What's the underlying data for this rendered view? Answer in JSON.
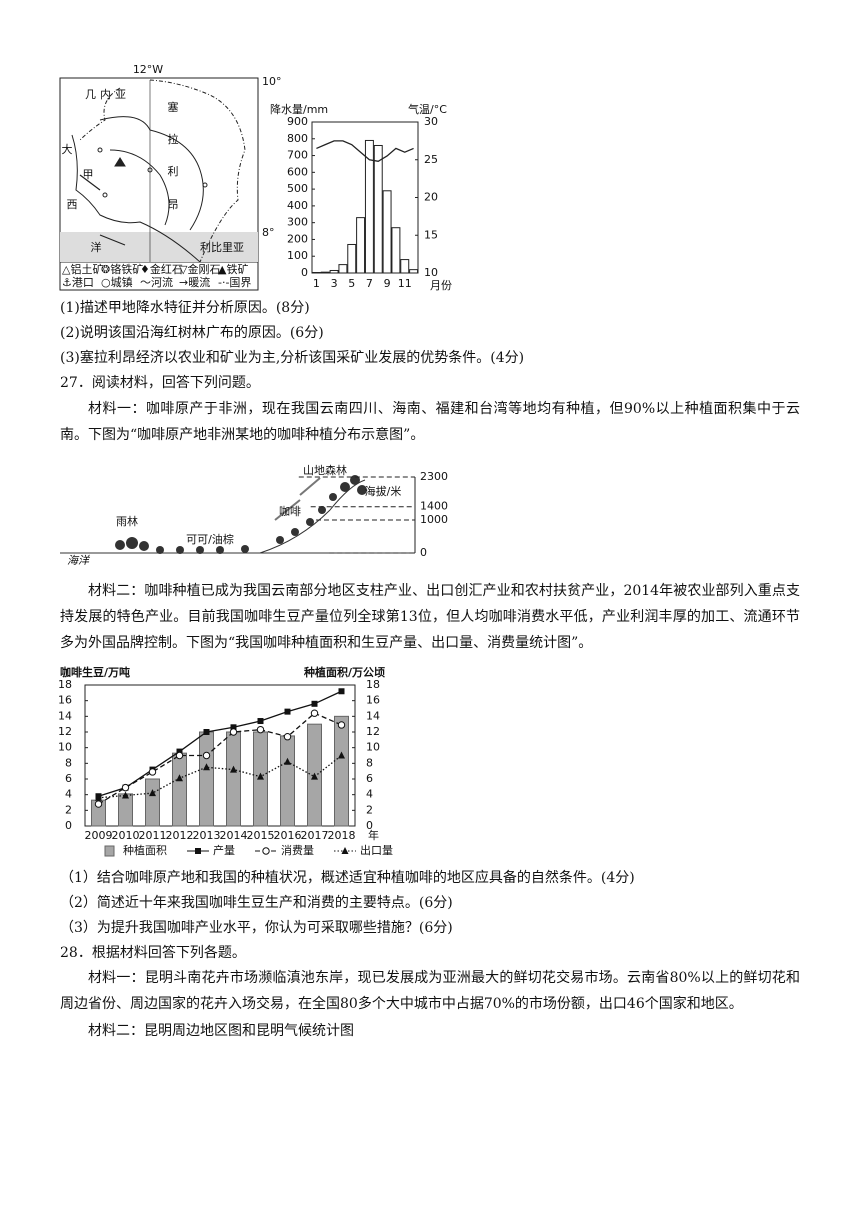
{
  "map": {
    "longitude": "12°W",
    "lat_north": "10°",
    "lat_south": "8°",
    "guinea": "几内亚",
    "country": [
      "塞",
      "拉",
      "利",
      "昂"
    ],
    "ocean": [
      "大",
      "西",
      "洋"
    ],
    "jia": "甲",
    "liberia": "利比里亚",
    "legend": [
      "△铝土矿",
      "❂铬铁矿",
      "♦金红石",
      "▽金刚石",
      "▲铁矿",
      "⚓港口",
      "○城镇",
      "～河流",
      "→暖流",
      "-·-国界"
    ]
  },
  "climate_chart": {
    "type": "bar-line",
    "ylabel": "降水量/mm",
    "y2label": "气温/°C",
    "xlabel": "月份",
    "categories": [
      1,
      null,
      3,
      null,
      5,
      null,
      7,
      null,
      9,
      null,
      11,
      null
    ],
    "series": [
      {
        "name": "降水量",
        "type": "bar",
        "values": [
          3,
          5,
          15,
          50,
          170,
          330,
          790,
          760,
          490,
          270,
          80,
          20
        ]
      },
      {
        "name": "气温",
        "type": "line",
        "axis": "y2",
        "values": [
          26.5,
          27,
          27.5,
          27.5,
          27,
          26,
          25,
          24.8,
          25.5,
          26.5,
          26,
          26.5
        ]
      }
    ],
    "ylim": [
      0,
      900
    ],
    "yticks": [
      0,
      100,
      200,
      300,
      400,
      500,
      600,
      700,
      800,
      900
    ],
    "y2lim": [
      10,
      30
    ],
    "y2ticks": [
      10,
      15,
      20,
      25,
      30
    ]
  },
  "q26_questions": [
    "(1)描述甲地降水特征并分析原因。(8分)",
    "(2)说明该国沿海红树林广布的原因。(6分)",
    "(3)塞拉利昂经济以农业和矿业为主,分析该国采矿业发展的优势条件。(4分)"
  ],
  "q27": {
    "title": "27．阅读材料，回答下列问题。",
    "material1": "材料一：咖啡原产于非洲，现在我国云南四川、海南、福建和台湾等地均有种植，但90%以上种植面积集中于云南。下图为“咖啡原产地非洲某地的咖啡种植分布示意图”。",
    "material2": "材料二：咖啡种植已成为我国云南部分地区支柱产业、出口创汇产业和农村扶贫产业，2014年被农业部列入重点支持发展的特色产业。目前我国咖啡生豆产量位列全球第13位，但人均咖啡消费水平低，产业利润丰厚的加工、流通环节多为外国品牌控制。下图为“我国咖啡种植面积和生豆产量、出口量、消费量统计图”。",
    "questions": [
      "（1）结合咖啡原产地和我国的种植状况，概述适宜种植咖啡的地区应具备的自然条件。(4分)",
      "（2）简述近十年来我国咖啡生豆生产和消费的主要特点。(6分)",
      "（3）为提升我国咖啡产业水平，你认为可采取哪些措施？(6分)"
    ]
  },
  "coffee_diagram": {
    "forest": "山地森林",
    "altitude": "海拔/米",
    "coffee": "咖啡",
    "cocoa": "可可/油棕",
    "rainforest": "雨林",
    "ocean": "海洋",
    "levels": [
      2300,
      1400,
      1000,
      0
    ]
  },
  "coffee_chart": {
    "type": "bar-line",
    "ylabel": "咖啡生豆/万吨",
    "y2label": "种植面积/万公顷",
    "xunit": "年",
    "categories": [
      "2009",
      "2010",
      "2011",
      "2012",
      "2013",
      "2014",
      "2015",
      "2016",
      "2017",
      "2018"
    ],
    "series": [
      {
        "name": "种植面积",
        "type": "bar",
        "axis": "y2",
        "color": "#a6a6a6",
        "values": [
          3.3,
          4.1,
          6,
          9.3,
          12,
          12,
          12,
          11.5,
          13,
          14
        ]
      },
      {
        "name": "产量",
        "type": "line",
        "marker": "square",
        "values": [
          3.8,
          4.9,
          7.2,
          9.5,
          12,
          12.6,
          13.4,
          14.6,
          15.6,
          17.2
        ]
      },
      {
        "name": "消费量",
        "type": "line",
        "marker": "circle",
        "dash": "dashed",
        "values": [
          2.8,
          4.9,
          6.9,
          9,
          9,
          12,
          12.3,
          11.4,
          14.4,
          12.9
        ]
      },
      {
        "name": "出口量",
        "type": "line",
        "marker": "triangle",
        "dash": "dotted",
        "values": [
          3.6,
          3.9,
          4.2,
          6.1,
          7.5,
          7.2,
          6.3,
          8.2,
          6.3,
          9
        ]
      }
    ],
    "ylim": [
      0,
      18
    ],
    "yticks": [
      0,
      2,
      4,
      6,
      8,
      10,
      12,
      14,
      16,
      18
    ],
    "y2lim": [
      0,
      18
    ],
    "y2ticks": [
      0,
      2,
      4,
      6,
      8,
      10,
      12,
      14,
      16,
      18
    ]
  },
  "q28": {
    "title": "28．根据材料回答下列各题。",
    "material1": "材料一：昆明斗南花卉市场濒临滇池东岸，现已发展成为亚洲最大的鲜切花交易市场。云南省80%以上的鲜切花和周边省份、周边国家的花卉入场交易，在全国80多个大中城市中占据70%的市场份额，出口46个国家和地区。",
    "material2": "材料二：昆明周边地区图和昆明气候统计图"
  }
}
